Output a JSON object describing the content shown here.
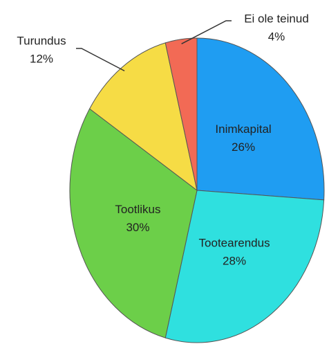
{
  "chart_data": {
    "type": "pie",
    "categories": [
      "Inimkapital",
      "Tootearendus",
      "Tootlikus",
      "Turundus",
      "Ei ole teinud"
    ],
    "values": [
      26,
      28,
      30,
      12,
      4
    ],
    "value_labels": [
      "26%",
      "28%",
      "30%",
      "12%",
      "4%"
    ],
    "colors": [
      "#1f9df2",
      "#2fe0df",
      "#6ccf49",
      "#f6dc45",
      "#f26a55"
    ]
  }
}
